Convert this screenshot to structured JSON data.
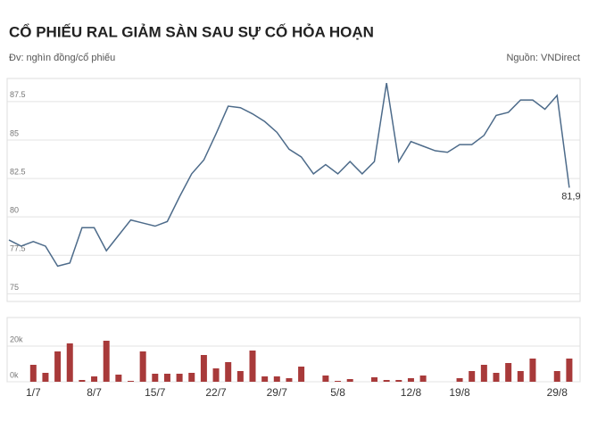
{
  "chart_data": [
    {
      "type": "line",
      "title": "CỔ PHIẾU RAL GIẢM SÀN SAU SỰ CỐ HỎA HOẠN",
      "unit": "Đv: nghìn đồng/cổ phiếu",
      "source": "Nguồn: VNDirect",
      "color": "#4d6b8a",
      "ylim": [
        74.5,
        89
      ],
      "yticks": [
        75,
        77.5,
        80,
        82.5,
        85,
        87.5
      ],
      "grid": true,
      "values": [
        78.5,
        78.1,
        78.4,
        78.1,
        76.8,
        77.0,
        79.3,
        79.3,
        77.8,
        78.8,
        79.8,
        79.6,
        79.4,
        79.7,
        81.3,
        82.8,
        83.7,
        85.4,
        87.2,
        87.1,
        86.7,
        86.2,
        85.5,
        84.4,
        83.9,
        82.8,
        83.4,
        82.8,
        83.6,
        82.8,
        83.6,
        88.7,
        83.6,
        84.9,
        84.6,
        84.3,
        84.2,
        84.7,
        84.7,
        85.3,
        86.6,
        86.8,
        87.6,
        87.6,
        87.0,
        87.9,
        81.9
      ],
      "value_labels": [
        null,
        null,
        null,
        null,
        null,
        null,
        null,
        null,
        null,
        null,
        null,
        null,
        null,
        null,
        null,
        null,
        null,
        null,
        null,
        null,
        null,
        null,
        null,
        null,
        null,
        null,
        null,
        null,
        null,
        null,
        null,
        null,
        null,
        null,
        null,
        null,
        null,
        null,
        null,
        null,
        null,
        null,
        null,
        null,
        null,
        null,
        "81,9"
      ]
    },
    {
      "type": "bar",
      "color": "#a83a3a",
      "ylim": [
        0,
        36
      ],
      "yticks": [
        {
          "value": 0,
          "label": "0k"
        },
        {
          "value": 20,
          "label": "20k"
        }
      ],
      "grid": true,
      "categories": [
        null,
        null,
        "1/7",
        null,
        null,
        null,
        null,
        "8/7",
        null,
        null,
        null,
        null,
        "15/7",
        null,
        null,
        null,
        null,
        "22/7",
        null,
        null,
        null,
        null,
        "29/7",
        null,
        null,
        null,
        null,
        "5/8",
        null,
        null,
        null,
        null,
        null,
        "12/8",
        null,
        null,
        null,
        "19/8",
        null,
        null,
        null,
        null,
        null,
        null,
        null,
        "29/8",
        null
      ],
      "values": [
        0,
        0,
        9.5,
        5,
        17,
        21.5,
        1,
        3,
        23,
        4,
        0.5,
        17,
        4.5,
        4.5,
        4.5,
        5,
        15,
        7.5,
        11,
        6,
        17.5,
        3,
        3,
        2,
        8.5,
        0,
        3.5,
        0.5,
        1.5,
        0,
        2.5,
        1,
        1,
        2,
        3.5,
        0,
        0,
        2,
        6,
        9.5,
        5,
        10.5,
        6,
        13,
        0,
        6,
        13
      ]
    }
  ]
}
